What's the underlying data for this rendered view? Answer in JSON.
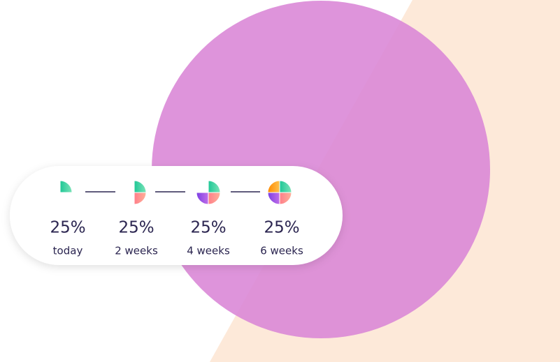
{
  "steps": [
    {
      "amount": "25%",
      "label": "today"
    },
    {
      "amount": "25%",
      "label": "2 weeks"
    },
    {
      "amount": "25%",
      "label": "4 weeks"
    },
    {
      "amount": "25%",
      "label": "6 weeks"
    }
  ]
}
